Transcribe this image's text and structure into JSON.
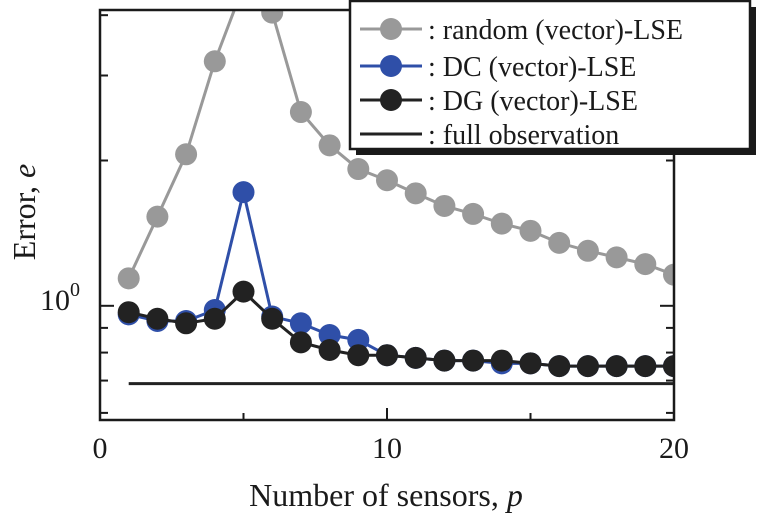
{
  "chart_data": {
    "type": "line",
    "xlabel": "Number of sensors, ",
    "xlabel_var": "p",
    "ylabel": "Error, ",
    "ylabel_var": "e",
    "x_ticks": [
      0,
      10,
      20
    ],
    "y_tick_base": "10",
    "y_tick_exp": "0",
    "xlim": [
      0,
      20
    ],
    "ylim": [
      0.58,
      4.1
    ],
    "y_scale": "log",
    "grid": false,
    "legend_position": "top-right",
    "series": [
      {
        "name": ": random (vector)-LSE",
        "color": "#999999",
        "marker": "circle",
        "x": [
          1,
          2,
          3,
          4,
          5,
          6,
          7,
          8,
          9,
          10,
          11,
          12,
          13,
          14,
          15,
          16,
          17,
          18,
          19,
          20
        ],
        "y": [
          1.14,
          1.53,
          2.06,
          3.21,
          4.6,
          4.05,
          2.52,
          2.15,
          1.92,
          1.82,
          1.71,
          1.61,
          1.55,
          1.48,
          1.43,
          1.35,
          1.3,
          1.26,
          1.22,
          1.16
        ]
      },
      {
        "name": ": DC (vector)-LSE",
        "color": "#2f4fa8",
        "marker": "circle",
        "x": [
          1,
          2,
          3,
          4,
          5,
          6,
          7,
          8,
          9,
          10,
          11,
          12,
          13,
          14,
          15,
          16,
          17,
          18,
          19,
          20
        ],
        "y": [
          0.96,
          0.93,
          0.93,
          0.98,
          1.72,
          0.95,
          0.92,
          0.87,
          0.85,
          0.79,
          0.78,
          0.77,
          0.77,
          0.76,
          0.76,
          0.75,
          0.75,
          0.75,
          0.75,
          0.75
        ]
      },
      {
        "name": ": DG (vector)-LSE",
        "color": "#222222",
        "marker": "circle",
        "x": [
          1,
          2,
          3,
          4,
          5,
          6,
          7,
          8,
          9,
          10,
          11,
          12,
          13,
          14,
          15,
          16,
          17,
          18,
          19,
          20
        ],
        "y": [
          0.97,
          0.94,
          0.92,
          0.94,
          1.07,
          0.94,
          0.84,
          0.81,
          0.79,
          0.79,
          0.78,
          0.77,
          0.77,
          0.77,
          0.76,
          0.75,
          0.75,
          0.75,
          0.75,
          0.75
        ]
      },
      {
        "name": ": full observation",
        "color": "#222222",
        "marker": "none",
        "x": [
          1,
          20
        ],
        "y": [
          0.69,
          0.69
        ]
      }
    ]
  }
}
